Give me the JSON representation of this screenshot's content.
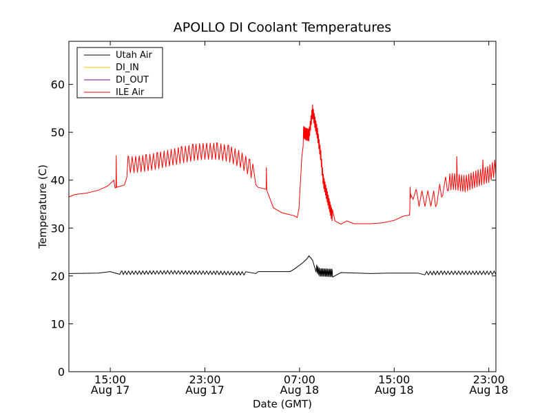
{
  "chart_data": {
    "type": "line",
    "title": "APOLLO DI Coolant Temperatures",
    "xlabel": "Date (GMT)",
    "ylabel": "Temperature (C)",
    "ylim": [
      0,
      69
    ],
    "xlim_hours": [
      11.5,
      47.6
    ],
    "yticks": [
      0,
      10,
      20,
      30,
      40,
      50,
      60
    ],
    "xticks": [
      {
        "hour": 15,
        "time": "15:00",
        "date": "Aug 17"
      },
      {
        "hour": 23,
        "time": "23:00",
        "date": "Aug 17"
      },
      {
        "hour": 31,
        "time": "07:00",
        "date": "Aug 18"
      },
      {
        "hour": 39,
        "time": "15:00",
        "date": "Aug 18"
      },
      {
        "hour": 47,
        "time": "23:00",
        "date": "Aug 18"
      }
    ],
    "legend_position": "top-left",
    "series": [
      {
        "name": "Utah Air",
        "color": "#000000",
        "base": [
          [
            11.5,
            20.5
          ],
          [
            14,
            20.6
          ],
          [
            15,
            20.9
          ],
          [
            16,
            20.7
          ],
          [
            20,
            20.8
          ],
          [
            24,
            20.7
          ],
          [
            26,
            20.6
          ],
          [
            27.3,
            20.5
          ],
          [
            27.5,
            20.9
          ],
          [
            30.2,
            20.9
          ],
          [
            30.6,
            21.5
          ],
          [
            31.2,
            22.6
          ],
          [
            31.6,
            23.5
          ],
          [
            31.8,
            24.2
          ],
          [
            32.1,
            23.3
          ],
          [
            32.4,
            21.8
          ],
          [
            32.7,
            20.9
          ],
          [
            33.5,
            20.8
          ],
          [
            34.5,
            20.7
          ],
          [
            37,
            20.5
          ],
          [
            38.5,
            20.6
          ],
          [
            39.5,
            20.6
          ],
          [
            41,
            20.6
          ],
          [
            43,
            20.7
          ],
          [
            47.6,
            20.7
          ]
        ],
        "oscillations": [
          {
            "from": 15.8,
            "to": 26.5,
            "period": 0.3,
            "low": -0.4,
            "high": 0.3
          },
          {
            "from": 32.4,
            "to": 33.8,
            "period": 0.1,
            "low": -1.0,
            "high": 0.7
          },
          {
            "from": 41.6,
            "to": 47.6,
            "period": 0.3,
            "low": -0.4,
            "high": 0.3
          }
        ]
      },
      {
        "name": "DI_IN",
        "color": "#ffbf00",
        "base": [],
        "oscillations": []
      },
      {
        "name": "DI_OUT",
        "color": "#8000a0",
        "base": [],
        "oscillations": []
      },
      {
        "name": "ILE Air",
        "color": "#ff0000",
        "base": [
          [
            11.5,
            36.5
          ],
          [
            12,
            37
          ],
          [
            13,
            37.3
          ],
          [
            14,
            37.9
          ],
          [
            14.8,
            38.8
          ],
          [
            15.3,
            40
          ],
          [
            15.4,
            38.4
          ],
          [
            16.2,
            39
          ],
          [
            16.5,
            41.5
          ],
          [
            17,
            41.5
          ],
          [
            18,
            41.8
          ],
          [
            19,
            42.3
          ],
          [
            20,
            42.9
          ],
          [
            21,
            43.5
          ],
          [
            22,
            44
          ],
          [
            23,
            44.3
          ],
          [
            24,
            44.3
          ],
          [
            25,
            43.8
          ],
          [
            26,
            42.6
          ],
          [
            26.8,
            40.8
          ],
          [
            27.3,
            39
          ],
          [
            27.5,
            38.5
          ],
          [
            28.2,
            38.1
          ],
          [
            28.8,
            34.2
          ],
          [
            29.5,
            33.2
          ],
          [
            30,
            32.9
          ],
          [
            30.5,
            32.6
          ],
          [
            30.8,
            32.2
          ],
          [
            30.95,
            34
          ],
          [
            31.2,
            45
          ],
          [
            31.35,
            50
          ],
          [
            31.6,
            49.5
          ],
          [
            31.8,
            49.5
          ],
          [
            32.1,
            54.5
          ],
          [
            32.3,
            52
          ],
          [
            32.5,
            50
          ],
          [
            32.8,
            45
          ],
          [
            33,
            40
          ],
          [
            33.4,
            36
          ],
          [
            33.7,
            33
          ],
          [
            34,
            31.5
          ],
          [
            34.5,
            30.8
          ],
          [
            35,
            31.5
          ],
          [
            35.6,
            30.9
          ],
          [
            37,
            30.9
          ],
          [
            38,
            31.1
          ],
          [
            39,
            31.6
          ],
          [
            39.8,
            32.5
          ],
          [
            40.3,
            32.7
          ],
          [
            40.4,
            37
          ],
          [
            40.9,
            34.5
          ],
          [
            42.5,
            34.5
          ],
          [
            43,
            36.5
          ],
          [
            43.5,
            37.8
          ],
          [
            44,
            38
          ],
          [
            45,
            37.5
          ],
          [
            46,
            38.6
          ],
          [
            47,
            39.5
          ],
          [
            47.6,
            41
          ]
        ],
        "oscillations": [
          {
            "from": 16.4,
            "to": 27.1,
            "period": 0.3,
            "low": 0,
            "high": 3.5
          },
          {
            "from": 31.3,
            "to": 33.8,
            "period": 0.07,
            "low": -1.3,
            "high": 1.3
          },
          {
            "from": 40.6,
            "to": 43.6,
            "period": 0.5,
            "low": 0,
            "high": 3.3
          },
          {
            "from": 43.6,
            "to": 47.6,
            "period": 0.2,
            "low": 0,
            "high": 3.5
          }
        ],
        "spikes": [
          {
            "hour": 15.5,
            "value": 45.2
          },
          {
            "hour": 28.2,
            "value": 42.7
          },
          {
            "hour": 40.35,
            "value": 38.6
          },
          {
            "hour": 44.3,
            "value": 45.0
          },
          {
            "hour": 46.5,
            "value": 44.3
          }
        ]
      }
    ]
  }
}
